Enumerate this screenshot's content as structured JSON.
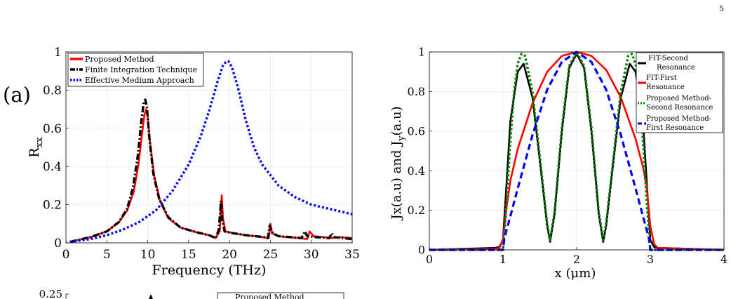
{
  "page": {
    "number": "5"
  },
  "chart_data": [
    {
      "type": "line",
      "panel_label": "(a)",
      "title": "",
      "xlabel": "Frequency (THz)",
      "ylabel": "R_xx",
      "xlim": [
        0,
        35
      ],
      "ylim": [
        0,
        1
      ],
      "xticks": [
        0,
        5,
        10,
        15,
        20,
        25,
        30,
        35
      ],
      "yticks": [
        0,
        0.2,
        0.4,
        0.6,
        0.8,
        1
      ],
      "ytick_labels": [
        "0",
        "0.2",
        "0.4",
        "0.6",
        "0.8",
        "1"
      ],
      "grid": true,
      "legend_position": "top-right",
      "series": [
        {
          "name": "Proposed Method",
          "color": "#ff0000",
          "style": "solid",
          "x": [
            0.5,
            3,
            5,
            6.5,
            7.5,
            8.3,
            8.9,
            9.3,
            9.6,
            9.8,
            10.0,
            10.3,
            10.8,
            11.5,
            12.5,
            14,
            16,
            17.5,
            18.3,
            18.8,
            19.05,
            19.2,
            19.5,
            20.5,
            22,
            24,
            24.8,
            25.0,
            25.2,
            26,
            27,
            28.5,
            29.5,
            29.8,
            30.3,
            31.5,
            32.5,
            33.5,
            35
          ],
          "y": [
            0.005,
            0.03,
            0.06,
            0.11,
            0.17,
            0.27,
            0.42,
            0.57,
            0.67,
            0.7,
            0.66,
            0.52,
            0.35,
            0.22,
            0.13,
            0.08,
            0.055,
            0.04,
            0.025,
            0.06,
            0.25,
            0.13,
            0.06,
            0.05,
            0.04,
            0.03,
            0.025,
            0.1,
            0.05,
            0.035,
            0.03,
            0.025,
            0.02,
            0.06,
            0.035,
            0.03,
            0.025,
            0.03,
            0.025
          ]
        },
        {
          "name": "Finite Integration Technique",
          "color": "#000000",
          "style": "dashdot",
          "x": [
            0.5,
            3,
            5,
            6.5,
            7.5,
            8.2,
            8.8,
            9.2,
            9.5,
            9.7,
            9.9,
            10.2,
            10.7,
            11.4,
            12.5,
            14,
            16,
            17.5,
            18.3,
            18.7,
            18.95,
            19.1,
            19.4,
            20.5,
            22,
            24.2,
            24.7,
            24.9,
            25.3,
            26,
            27.5,
            28.8,
            29.2,
            29.5,
            30.5,
            32.2,
            32.5,
            32.8,
            35
          ],
          "y": [
            0.005,
            0.03,
            0.06,
            0.11,
            0.18,
            0.29,
            0.46,
            0.63,
            0.73,
            0.75,
            0.71,
            0.55,
            0.36,
            0.23,
            0.135,
            0.08,
            0.055,
            0.04,
            0.025,
            0.07,
            0.22,
            0.12,
            0.06,
            0.05,
            0.04,
            0.03,
            0.025,
            0.09,
            0.05,
            0.035,
            0.03,
            0.025,
            0.06,
            0.035,
            0.03,
            0.025,
            0.05,
            0.03,
            0.02
          ]
        },
        {
          "name": "Effective Medium Approach",
          "color": "#0000ff",
          "style": "dotted",
          "x": [
            0.5,
            3,
            5,
            7,
            9,
            11,
            13,
            15,
            16.5,
            17.5,
            18.5,
            19.2,
            19.6,
            19.9,
            20.3,
            21,
            22,
            23,
            24,
            26,
            28,
            30,
            32,
            35
          ],
          "y": [
            0.005,
            0.02,
            0.04,
            0.07,
            0.11,
            0.17,
            0.27,
            0.41,
            0.56,
            0.69,
            0.84,
            0.93,
            0.95,
            0.95,
            0.92,
            0.82,
            0.64,
            0.5,
            0.41,
            0.3,
            0.24,
            0.2,
            0.18,
            0.15
          ]
        }
      ]
    },
    {
      "type": "line",
      "title": "",
      "xlabel": "x (μm)",
      "ylabel": "Jx(a.u) and J_y(a.u)",
      "xlim": [
        0,
        4
      ],
      "ylim": [
        0,
        1
      ],
      "xticks": [
        0,
        1,
        2,
        3,
        4
      ],
      "yticks": [
        0,
        0.2,
        0.4,
        0.6,
        0.8,
        1
      ],
      "ytick_labels": [
        "0",
        "0.2",
        "0.4",
        "0.6",
        "0.8",
        "1"
      ],
      "grid": true,
      "legend_position": "top-right",
      "series": [
        {
          "name": "FIT-Second Resonance",
          "color": "#000000",
          "style": "solid",
          "x": [
            0,
            0.9,
            0.95,
            1.0,
            1.05,
            1.1,
            1.2,
            1.28,
            1.4,
            1.5,
            1.6,
            1.64,
            1.7,
            1.8,
            1.9,
            2.0,
            2.1,
            2.2,
            2.3,
            2.36,
            2.4,
            2.5,
            2.6,
            2.72,
            2.8,
            2.9,
            2.95,
            3.0,
            3.05,
            3.1,
            4
          ],
          "y": [
            0.0,
            0.01,
            0.015,
            0.05,
            0.35,
            0.65,
            0.9,
            0.94,
            0.77,
            0.45,
            0.12,
            0.04,
            0.18,
            0.6,
            0.92,
            0.99,
            0.92,
            0.6,
            0.18,
            0.04,
            0.12,
            0.45,
            0.77,
            0.94,
            0.9,
            0.65,
            0.35,
            0.05,
            0.015,
            0.01,
            0.0
          ]
        },
        {
          "name": "FIT-First Resonance",
          "color": "#ff0000",
          "style": "solid",
          "x": [
            0,
            0.9,
            0.95,
            1.0,
            1.05,
            1.1,
            1.2,
            1.4,
            1.6,
            1.8,
            2.0,
            2.2,
            2.4,
            2.6,
            2.8,
            2.9,
            2.95,
            3.0,
            3.05,
            3.1,
            4
          ],
          "y": [
            0.0,
            0.005,
            0.01,
            0.05,
            0.22,
            0.35,
            0.51,
            0.74,
            0.9,
            0.98,
            1.0,
            0.98,
            0.91,
            0.77,
            0.56,
            0.42,
            0.32,
            0.12,
            0.03,
            0.01,
            0.0
          ]
        },
        {
          "name": "Proposed Method-Second Resonance",
          "color": "#008000",
          "style": "dotted",
          "x": [
            0,
            1.0,
            1.05,
            1.1,
            1.15,
            1.2,
            1.25,
            1.3,
            1.4,
            1.5,
            1.6,
            1.64,
            1.7,
            1.8,
            1.9,
            2.0,
            2.1,
            2.2,
            2.3,
            2.36,
            2.4,
            2.5,
            2.6,
            2.7,
            2.75,
            2.8,
            2.85,
            2.9,
            2.95,
            3.0,
            4
          ],
          "y": [
            0.0,
            0.0,
            0.25,
            0.55,
            0.8,
            0.94,
            0.99,
            0.98,
            0.8,
            0.47,
            0.13,
            0.05,
            0.19,
            0.62,
            0.93,
            1.0,
            0.93,
            0.62,
            0.19,
            0.05,
            0.13,
            0.47,
            0.8,
            0.98,
            0.99,
            0.94,
            0.8,
            0.55,
            0.25,
            0.0,
            0.0
          ]
        },
        {
          "name": "Proposed Method-First Resonance",
          "color": "#0000ff",
          "style": "dashed",
          "x": [
            0,
            1.0,
            1.02,
            1.1,
            1.2,
            1.4,
            1.6,
            1.8,
            2.0,
            2.2,
            2.4,
            2.6,
            2.8,
            2.9,
            2.98,
            3.0,
            4
          ],
          "y": [
            0.0,
            0.0,
            0.06,
            0.17,
            0.31,
            0.58,
            0.81,
            0.95,
            1.0,
            0.95,
            0.81,
            0.58,
            0.31,
            0.17,
            0.06,
            0.0,
            0.0
          ]
        }
      ]
    },
    {
      "type": "line",
      "partial": true,
      "ylim_top_label": "0.25",
      "legend_label_partial": "Proposed Method"
    }
  ]
}
